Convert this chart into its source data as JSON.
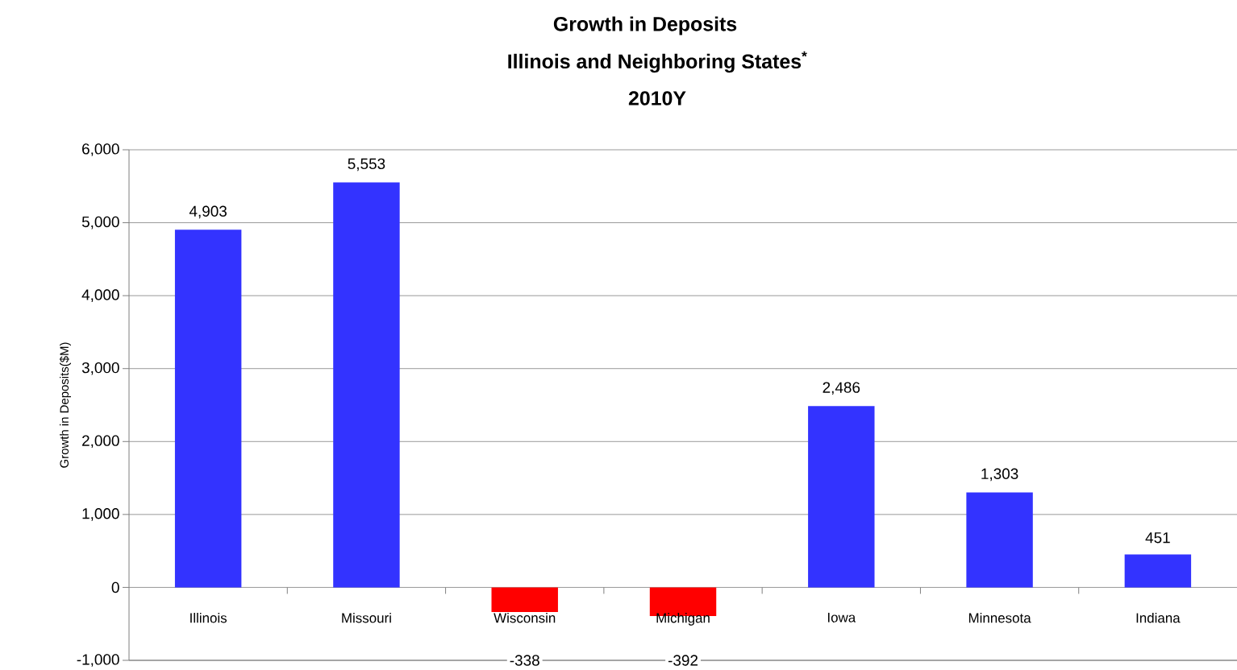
{
  "chart_data": {
    "type": "bar",
    "title": "Growth in Deposits",
    "subtitle": "Illinois and Neighboring States$^{*}$",
    "annotations": [
      "2010Y"
    ],
    "ylabel": "Growth in Deposits($M)",
    "categories": [
      "Illinois",
      "Missouri",
      "Wisconsin",
      "Michigan",
      "Iowa",
      "Minnesota",
      "Indiana"
    ],
    "values": [
      4903,
      5553,
      -338,
      -392,
      2486,
      1303,
      451
    ],
    "colors": [
      "#3333ff",
      "#3333ff",
      "#ff0000",
      "#ff0000",
      "#3333ff",
      "#3333ff",
      "#3333ff"
    ],
    "value_labels": [
      "4,903",
      "5,553",
      "-338",
      "-392",
      "2,486",
      "1,303",
      "451"
    ],
    "ylim": [
      -1000,
      6000
    ],
    "yticks": [
      {
        "value": -1000,
        "label": "-1,000"
      },
      0,
      {
        "value": 1000,
        "label": "1,000"
      },
      {
        "value": 2000,
        "label": "2,000"
      },
      {
        "value": 3000,
        "label": "3,000"
      },
      {
        "value": 4000,
        "label": "4,000"
      },
      {
        "value": 5000,
        "label": "5,000"
      },
      {
        "value": 6000,
        "label": "6,000"
      }
    ],
    "grid": "y"
  }
}
